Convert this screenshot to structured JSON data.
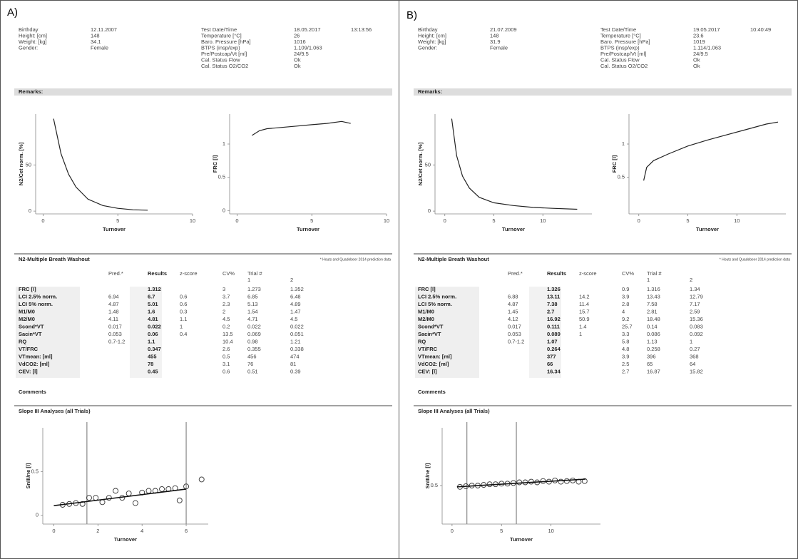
{
  "panels": [
    {
      "label": "A)",
      "header": {
        "left": [
          [
            "Birthday",
            "12.11.2007"
          ],
          [
            "Height: [cm]",
            "148"
          ],
          [
            "Weight: [kg]",
            "34.1"
          ],
          [
            "Gender:",
            "Female"
          ]
        ],
        "right": [
          [
            "Test Date/Time",
            "18.05.2017",
            "13:13:56"
          ],
          [
            "Temperature [°C]",
            "26"
          ],
          [
            "Baro. Pressure [hPa]",
            "1016"
          ],
          [
            "BTPS (insp/exp)",
            "1.109/1.063"
          ],
          [
            "Pre/Postcap/Vt [ml]",
            "24/9.5"
          ],
          [
            "Cal. Status Flow",
            "Ok"
          ],
          [
            "Cal. Status O2/CO2",
            "Ok"
          ]
        ]
      },
      "remarks": "Remarks:",
      "washout": {
        "xlabel": "Turnover",
        "ylabel": "N2/Cet norm. [%]",
        "xlim": [
          -0.5,
          10
        ],
        "ylim": [
          -3,
          105
        ],
        "xticks": [
          0,
          5,
          10
        ],
        "yticks": [
          0,
          50
        ],
        "x": [
          0.7,
          1.2,
          1.7,
          2.2,
          3,
          4,
          5,
          6,
          7
        ],
        "y": [
          100,
          62,
          40,
          26,
          13,
          6,
          3,
          1.5,
          1
        ]
      },
      "frc": {
        "xlabel": "Turnover",
        "ylabel": "FRC [l]",
        "xlim": [
          -0.5,
          10
        ],
        "ylim": [
          -0.05,
          1.45
        ],
        "xticks": [
          0,
          5,
          10
        ],
        "yticks": [
          0,
          0.5,
          1
        ],
        "x": [
          1,
          1.5,
          2,
          3,
          4,
          5,
          6,
          7,
          7.6
        ],
        "y": [
          1.13,
          1.2,
          1.23,
          1.25,
          1.27,
          1.29,
          1.31,
          1.34,
          1.31
        ]
      },
      "table": {
        "title": "N2-Multiple Breath Washout",
        "note": "* Houts and Quadebeer 2014 prediction data",
        "header": [
          "Pred.*",
          "Results",
          "z-score",
          "CV%",
          "Trial #"
        ],
        "trials": [
          "1",
          "2"
        ],
        "rows": [
          [
            "FRC [l]",
            null,
            "1.312",
            null,
            "3",
            "1.273",
            "1.352"
          ],
          [
            "LCI 2.5% norm.",
            "6.94",
            "6.7",
            "0.6",
            "3.7",
            "6.85",
            "6.48"
          ],
          [
            "LCI 5% norm.",
            "4.87",
            "5.01",
            "0.6",
            "2.3",
            "5.13",
            "4.89"
          ],
          [
            "M1/M0",
            "1.48",
            "1.6",
            "0.3",
            "2",
            "1.54",
            "1.47"
          ],
          [
            "M2/M0",
            "4.11",
            "4.81",
            "1.1",
            "4.5",
            "4.71",
            "4.5"
          ],
          [
            "Scond*VT",
            "0.017",
            "0.022",
            "1",
            "0.2",
            "0.022",
            "0.022"
          ],
          [
            "Sacin*VT",
            "0.053",
            "0.06",
            "0.4",
            "13.5",
            "0.069",
            "0.051"
          ],
          [
            "RQ",
            "0.7-1.2",
            "1.1",
            null,
            "10.4",
            "0.98",
            "1.21"
          ],
          [
            "VT/FRC",
            null,
            "0.347",
            null,
            "2.6",
            "0.355",
            "0.338"
          ],
          [
            "VTmean: [ml]",
            null,
            "455",
            null,
            "0.5",
            "456",
            "474"
          ],
          [
            "VdCO2: [ml]",
            null,
            "78",
            null,
            "3.1",
            "76",
            "81"
          ],
          [
            "CEV: [l]",
            null,
            "0.45",
            null,
            "0.6",
            "0.51",
            "0.39"
          ]
        ]
      },
      "comments": "Comments",
      "slope": {
        "title": "Slope III Analyses (all Trials)",
        "xlabel": "Turnover",
        "ylabel": "SnIII/ne [l]",
        "xlim": [
          -0.5,
          7
        ],
        "ylim": [
          -0.1,
          1
        ],
        "xticks": [
          0,
          2,
          4,
          6
        ],
        "yticks": [
          0,
          0.5
        ],
        "markers": [
          1.5,
          6
        ],
        "x": [
          0.4,
          0.7,
          1.0,
          1.3,
          1.6,
          1.9,
          2.2,
          2.5,
          2.8,
          3.1,
          3.4,
          3.7,
          4.0,
          4.3,
          4.6,
          4.9,
          5.2,
          5.5,
          5.7,
          6.0,
          6.7
        ],
        "y": [
          0.12,
          0.13,
          0.14,
          0.13,
          0.2,
          0.2,
          0.15,
          0.2,
          0.28,
          0.2,
          0.25,
          0.14,
          0.26,
          0.28,
          0.28,
          0.3,
          0.3,
          0.31,
          0.17,
          0.33,
          0.41
        ],
        "fit": {
          "x": [
            0,
            6
          ],
          "y": [
            0.11,
            0.3
          ]
        }
      }
    },
    {
      "label": "B)",
      "header": {
        "left": [
          [
            "Birthday",
            "21.07.2009"
          ],
          [
            "Height: [cm]",
            "148"
          ],
          [
            "Weight: [kg]",
            "31.9"
          ],
          [
            "Gender:",
            "Female"
          ]
        ],
        "right": [
          [
            "Test Date/Time",
            "19.05.2017",
            "10:40:49"
          ],
          [
            "Temperature [°C]",
            "23.6"
          ],
          [
            "Baro. Pressure [hPa]",
            "1019"
          ],
          [
            "BTPS (insp/exp)",
            "1.114/1.063"
          ],
          [
            "Pre/Postcap/Vt [ml]",
            "24/9.5"
          ],
          [
            "Cal. Status Flow",
            "Ok"
          ],
          [
            "Cal. Status O2/CO2",
            "Ok"
          ]
        ]
      },
      "remarks": "Remarks:",
      "washout": {
        "xlabel": "Turnover",
        "ylabel": "N2/Cet norm. [%]",
        "xlim": [
          -1,
          15
        ],
        "ylim": [
          -3,
          105
        ],
        "xticks": [
          0,
          5,
          10
        ],
        "yticks": [
          0,
          50
        ],
        "x": [
          0.7,
          1.2,
          1.8,
          2.5,
          3.5,
          5,
          7,
          9,
          11,
          13.5
        ],
        "y": [
          100,
          60,
          38,
          25,
          15,
          9,
          6,
          4,
          3,
          2
        ]
      },
      "frc": {
        "xlabel": "Turnover",
        "ylabel": "FRC [l]",
        "xlim": [
          -1,
          15
        ],
        "ylim": [
          -0.05,
          1.45
        ],
        "xticks": [
          0,
          5,
          10
        ],
        "yticks": [
          0.5,
          1
        ],
        "x": [
          0.5,
          0.8,
          1.5,
          3,
          5,
          7,
          9,
          11,
          13,
          14.2
        ],
        "y": [
          0.45,
          0.65,
          0.75,
          0.85,
          0.97,
          1.06,
          1.14,
          1.22,
          1.3,
          1.33
        ]
      },
      "table": {
        "title": "N2-Multiple Breath Washout",
        "note": "* Houts and Quadebeer 2014 prediction data",
        "header": [
          "Pred.*",
          "Results",
          "z-score",
          "CV%",
          "Trial #"
        ],
        "trials": [
          "1",
          "2"
        ],
        "rows": [
          [
            "FRC [l]",
            null,
            "1.326",
            null,
            "0.9",
            "1.316",
            "1.34"
          ],
          [
            "LCI 2.5% norm.",
            "6.88",
            "13.11",
            "14.2",
            "3.9",
            "13.43",
            "12.79"
          ],
          [
            "LCI 5% norm.",
            "4.87",
            "7.38",
            "11.4",
            "2.8",
            "7.58",
            "7.17"
          ],
          [
            "M1/M0",
            "1.45",
            "2.7",
            "15.7",
            "4",
            "2.81",
            "2.59"
          ],
          [
            "M2/M0",
            "4.12",
            "16.92",
            "50.9",
            "9.2",
            "18.48",
            "15.36"
          ],
          [
            "Scond*VT",
            "0.017",
            "0.111",
            "1.4",
            "25.7",
            "0.14",
            "0.083"
          ],
          [
            "Sacin*VT",
            "0.053",
            "0.089",
            "1",
            "3.3",
            "0.086",
            "0.092"
          ],
          [
            "RQ",
            "0.7-1.2",
            "1.07",
            null,
            "5.8",
            "1.13",
            "1"
          ],
          [
            "VT/FRC",
            null,
            "0.264",
            null,
            "4.8",
            "0.258",
            "0.27"
          ],
          [
            "VTmean: [ml]",
            null,
            "377",
            null,
            "3.9",
            "396",
            "368"
          ],
          [
            "VdCO2: [ml]",
            null,
            "66",
            null,
            "2.5",
            "65",
            "64"
          ],
          [
            "CEV: [l]",
            null,
            "16.34",
            null,
            "2.7",
            "16.87",
            "15.82"
          ]
        ]
      },
      "comments": "Comments",
      "slope": {
        "title": "Slope III Analyses (all Trials)",
        "xlabel": "Turnover",
        "ylabel": "SnIII/ne [l]",
        "xlim": [
          -1,
          15
        ],
        "ylim": [
          -0.1,
          1.4
        ],
        "xticks": [
          0,
          5,
          10
        ],
        "yticks": [
          0.5
        ],
        "markers": [
          1.5,
          6.5
        ],
        "x": [
          0.8,
          1.4,
          2,
          2.6,
          3.2,
          3.8,
          4.4,
          5,
          5.6,
          6.2,
          6.8,
          7.4,
          8,
          8.6,
          9.2,
          9.8,
          10.4,
          11,
          11.6,
          12.2,
          12.8,
          13.4
        ],
        "y": [
          0.48,
          0.49,
          0.5,
          0.5,
          0.51,
          0.52,
          0.52,
          0.53,
          0.53,
          0.54,
          0.55,
          0.55,
          0.56,
          0.55,
          0.57,
          0.56,
          0.58,
          0.56,
          0.57,
          0.58,
          0.56,
          0.57
        ],
        "fit": {
          "x": [
            0.5,
            13.5
          ],
          "y": [
            0.48,
            0.6
          ]
        }
      }
    }
  ]
}
